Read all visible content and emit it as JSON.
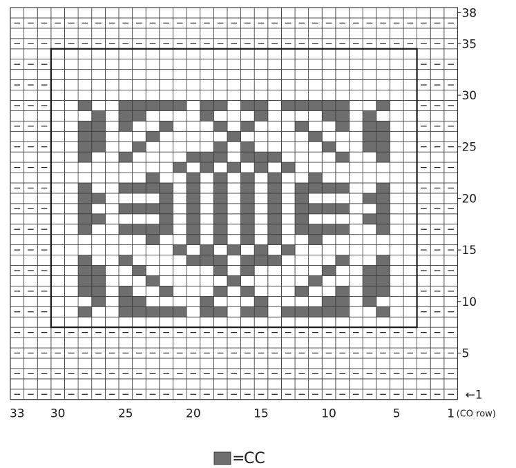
{
  "chart_data": {
    "type": "knitting_chart",
    "stitches": 33,
    "rows": 38,
    "title": "",
    "cc_color": "#6e6e6e",
    "grid_color": "#3a3a3a",
    "purl_symbol": "—",
    "row_labels": [
      {
        "row": 38,
        "text": "38"
      },
      {
        "row": 35,
        "text": "35"
      },
      {
        "row": 30,
        "text": "30"
      },
      {
        "row": 25,
        "text": "25"
      },
      {
        "row": 20,
        "text": "20"
      },
      {
        "row": 15,
        "text": "15"
      },
      {
        "row": 10,
        "text": "10"
      },
      {
        "row": 5,
        "text": "5"
      },
      {
        "row": 1,
        "text": "←1"
      }
    ],
    "stitch_labels": [
      {
        "stitch": 33,
        "text": "33"
      },
      {
        "stitch": 30,
        "text": "30"
      },
      {
        "stitch": 25,
        "text": "25"
      },
      {
        "stitch": 20,
        "text": "20"
      },
      {
        "stitch": 15,
        "text": "15"
      },
      {
        "stitch": 10,
        "text": "10"
      },
      {
        "stitch": 5,
        "text": "5"
      },
      {
        "stitch": 1,
        "text": "1"
      }
    ],
    "co_row_label": "(CO row)",
    "purl_rows": [
      1,
      3,
      5,
      7,
      35,
      37
    ],
    "border_cells": {
      "right_stitches": [
        1,
        2,
        3
      ],
      "left_stitches": [
        31,
        32,
        33
      ],
      "from_row": 7,
      "to_row": 33,
      "odd_rows_only": true
    },
    "frame": {
      "from_stitch": 4,
      "to_stitch": 30,
      "from_row": 8,
      "to_row": 34
    },
    "motif": {
      "origin_stitch": 4,
      "origin_row": 8,
      "rows_bottom_to_top": [
        "...........................",
        "..#..#####.##.##.#####..#..",
        "...#.##....#...#....##.#...",
        "..##.#..#...#.#...#..#.##..",
        "..##...#.....#.....#...##..",
        "..##..#.....#.#.....#..##..",
        "..#..#....###.###....#..#..",
        ".........#.#.#.#.#.........",
        ".......#..#.#.#.#..#.......",
        "..#..####.#.#.#.#.####..#..",
        "..##....#.#.#.#.#.#....##..",
        "..#..####.#.#.#.#.####..#..",
        "..##....#.#.#.#.#.#....##..",
        "..#..####.#.#.#.#.####..#..",
        ".......#..#.#.#.#..#.......",
        ".........#.#.#.#.#.........",
        "..#..#....###.###....#..#..",
        "..##..#.....#.#.....#..##..",
        "..##...#.....#.....#...##..",
        "..##.#..#...#.#...#..#.##..",
        "...#.##....#...#....##.#...",
        "..#..#####.##.##.#####..#..",
        "..........................."
      ]
    }
  },
  "legend": {
    "equals": "=",
    "label": "CC"
  }
}
